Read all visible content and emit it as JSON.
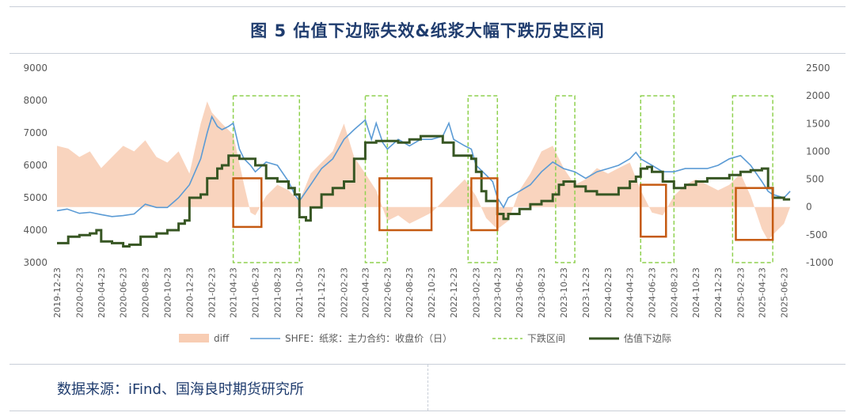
{
  "header": {
    "title": "图 5 估值下边际失效&纸浆大幅下跌历史区间"
  },
  "footer": {
    "source": "数据来源：iFind、国海良时期货研究所"
  },
  "chart_data": {
    "type": "line",
    "title": "图 5 估值下边际失效&纸浆大幅下跌历史区间",
    "left_axis": {
      "min": 3000,
      "max": 9000,
      "ticks": [
        3000,
        4000,
        5000,
        6000,
        7000,
        8000,
        9000
      ]
    },
    "right_axis": {
      "min": -1000,
      "max": 2500,
      "ticks": [
        -1000,
        -500,
        0,
        500,
        1000,
        1500,
        2000,
        2500
      ]
    },
    "x_tick_labels": [
      "2019-12-23",
      "2020-02-23",
      "2020-04-23",
      "2020-06-23",
      "2020-08-23",
      "2020-10-23",
      "2020-12-23",
      "2021-02-23",
      "2021-04-23",
      "2021-06-23",
      "2021-08-23",
      "2021-10-23",
      "2021-12-23",
      "2022-02-23",
      "2022-04-23",
      "2022-06-23",
      "2022-08-23",
      "2022-10-23",
      "2022-12-23",
      "2023-02-23",
      "2023-04-23",
      "2023-06-23",
      "2023-08-23",
      "2023-10-23",
      "2023-12-23",
      "2024-02-23",
      "2024-04-23",
      "2024-06-23",
      "2024-08-23",
      "2024-10-23",
      "2024-12-23",
      "2025-02-23",
      "2025-04-23",
      "2025-06-23"
    ],
    "legend": [
      "diff",
      "SHFE：纸浆：主力合约：收盘价（日）",
      "下跌区间",
      "估值下边际"
    ],
    "legend_position": "bottom",
    "colors": {
      "diff": "#f8cdb3",
      "shfe": "#5b9bd5",
      "range": "#8fd14f",
      "valuation": "#375623",
      "box": "#c55a11"
    },
    "series": [
      {
        "name": "SHFE：纸浆：主力合约：收盘价（日）",
        "axis": "left",
        "points": [
          [
            "2019-12-23",
            4600
          ],
          [
            "2020-01-20",
            4650
          ],
          [
            "2020-02-23",
            4520
          ],
          [
            "2020-03-23",
            4550
          ],
          [
            "2020-04-23",
            4480
          ],
          [
            "2020-05-23",
            4420
          ],
          [
            "2020-06-23",
            4450
          ],
          [
            "2020-07-23",
            4500
          ],
          [
            "2020-08-23",
            4800
          ],
          [
            "2020-09-23",
            4700
          ],
          [
            "2020-10-23",
            4700
          ],
          [
            "2020-11-23",
            5000
          ],
          [
            "2020-12-23",
            5400
          ],
          [
            "2021-01-23",
            6200
          ],
          [
            "2021-02-10",
            7000
          ],
          [
            "2021-02-23",
            7500
          ],
          [
            "2021-03-10",
            7200
          ],
          [
            "2021-03-23",
            7100
          ],
          [
            "2021-04-10",
            7200
          ],
          [
            "2021-04-23",
            7300
          ],
          [
            "2021-05-10",
            6500
          ],
          [
            "2021-05-23",
            6200
          ],
          [
            "2021-06-10",
            6000
          ],
          [
            "2021-06-23",
            5800
          ],
          [
            "2021-07-23",
            6100
          ],
          [
            "2021-08-23",
            6000
          ],
          [
            "2021-09-23",
            5500
          ],
          [
            "2021-10-10",
            5100
          ],
          [
            "2021-10-23",
            4900
          ],
          [
            "2021-11-23",
            5400
          ],
          [
            "2021-12-23",
            5900
          ],
          [
            "2022-01-23",
            6200
          ],
          [
            "2022-02-23",
            6800
          ],
          [
            "2022-03-23",
            7100
          ],
          [
            "2022-04-23",
            7400
          ],
          [
            "2022-05-10",
            6800
          ],
          [
            "2022-05-23",
            7300
          ],
          [
            "2022-06-10",
            6700
          ],
          [
            "2022-06-23",
            6500
          ],
          [
            "2022-07-23",
            6800
          ],
          [
            "2022-08-23",
            6600
          ],
          [
            "2022-09-23",
            6800
          ],
          [
            "2022-10-23",
            6800
          ],
          [
            "2022-11-23",
            6900
          ],
          [
            "2022-12-10",
            7300
          ],
          [
            "2022-12-23",
            6800
          ],
          [
            "2023-01-23",
            6600
          ],
          [
            "2023-02-10",
            6500
          ],
          [
            "2023-02-23",
            6000
          ],
          [
            "2023-03-23",
            5700
          ],
          [
            "2023-04-10",
            5500
          ],
          [
            "2023-04-23",
            5000
          ],
          [
            "2023-05-10",
            4700
          ],
          [
            "2023-05-23",
            5000
          ],
          [
            "2023-06-23",
            5200
          ],
          [
            "2023-07-23",
            5400
          ],
          [
            "2023-08-23",
            5800
          ],
          [
            "2023-09-23",
            6100
          ],
          [
            "2023-10-23",
            5900
          ],
          [
            "2023-11-23",
            5800
          ],
          [
            "2023-12-23",
            5600
          ],
          [
            "2024-01-23",
            5800
          ],
          [
            "2024-02-23",
            5900
          ],
          [
            "2024-03-23",
            6000
          ],
          [
            "2024-04-23",
            6200
          ],
          [
            "2024-05-10",
            6400
          ],
          [
            "2024-05-23",
            6200
          ],
          [
            "2024-06-23",
            6000
          ],
          [
            "2024-07-23",
            5800
          ],
          [
            "2024-08-23",
            5800
          ],
          [
            "2024-09-23",
            5900
          ],
          [
            "2024-10-23",
            5900
          ],
          [
            "2024-11-23",
            5900
          ],
          [
            "2024-12-23",
            6000
          ],
          [
            "2025-01-23",
            6200
          ],
          [
            "2025-02-23",
            6300
          ],
          [
            "2025-03-23",
            6000
          ],
          [
            "2025-04-23",
            5500
          ],
          [
            "2025-05-10",
            5200
          ],
          [
            "2025-05-23",
            5100
          ],
          [
            "2025-06-23",
            5000
          ],
          [
            "2025-07-10",
            5200
          ]
        ]
      },
      {
        "name": "估值下边际",
        "axis": "left",
        "points": [
          [
            "2019-12-23",
            3600
          ],
          [
            "2020-01-23",
            3800
          ],
          [
            "2020-02-23",
            3850
          ],
          [
            "2020-03-23",
            3900
          ],
          [
            "2020-04-10",
            4000
          ],
          [
            "2020-04-23",
            3650
          ],
          [
            "2020-05-23",
            3600
          ],
          [
            "2020-06-23",
            3500
          ],
          [
            "2020-07-10",
            3550
          ],
          [
            "2020-08-10",
            3800
          ],
          [
            "2020-09-23",
            3900
          ],
          [
            "2020-10-23",
            4000
          ],
          [
            "2020-11-23",
            4200
          ],
          [
            "2020-12-10",
            4300
          ],
          [
            "2020-12-23",
            5000
          ],
          [
            "2021-01-23",
            5100
          ],
          [
            "2021-02-10",
            5600
          ],
          [
            "2021-03-10",
            5900
          ],
          [
            "2021-03-23",
            6000
          ],
          [
            "2021-04-10",
            6300
          ],
          [
            "2021-05-10",
            6200
          ],
          [
            "2021-06-23",
            6000
          ],
          [
            "2021-07-23",
            5600
          ],
          [
            "2021-08-23",
            5500
          ],
          [
            "2021-09-23",
            5300
          ],
          [
            "2021-10-10",
            5100
          ],
          [
            "2021-10-23",
            4400
          ],
          [
            "2021-11-10",
            4300
          ],
          [
            "2021-11-23",
            4700
          ],
          [
            "2021-12-23",
            5100
          ],
          [
            "2022-01-23",
            5300
          ],
          [
            "2022-02-23",
            5500
          ],
          [
            "2022-03-23",
            6200
          ],
          [
            "2022-04-23",
            6700
          ],
          [
            "2022-05-23",
            6750
          ],
          [
            "2022-06-23",
            6750
          ],
          [
            "2022-07-23",
            6700
          ],
          [
            "2022-08-23",
            6800
          ],
          [
            "2022-09-23",
            6900
          ],
          [
            "2022-10-23",
            6900
          ],
          [
            "2022-11-23",
            6700
          ],
          [
            "2022-12-23",
            6300
          ],
          [
            "2023-01-23",
            6300
          ],
          [
            "2023-02-10",
            6200
          ],
          [
            "2023-02-23",
            5800
          ],
          [
            "2023-03-10",
            5200
          ],
          [
            "2023-03-23",
            4900
          ],
          [
            "2023-04-23",
            4500
          ],
          [
            "2023-05-10",
            4350
          ],
          [
            "2023-05-23",
            4500
          ],
          [
            "2023-06-23",
            4650
          ],
          [
            "2023-07-23",
            4800
          ],
          [
            "2023-08-23",
            4900
          ],
          [
            "2023-09-23",
            5100
          ],
          [
            "2023-10-10",
            5400
          ],
          [
            "2023-10-23",
            5500
          ],
          [
            "2023-11-23",
            5350
          ],
          [
            "2023-12-23",
            5200
          ],
          [
            "2024-01-23",
            5100
          ],
          [
            "2024-02-23",
            5100
          ],
          [
            "2024-03-23",
            5300
          ],
          [
            "2024-04-23",
            5500
          ],
          [
            "2024-05-10",
            5650
          ],
          [
            "2024-05-23",
            5900
          ],
          [
            "2024-06-10",
            5950
          ],
          [
            "2024-06-23",
            5800
          ],
          [
            "2024-07-23",
            5500
          ],
          [
            "2024-08-23",
            5300
          ],
          [
            "2024-09-23",
            5400
          ],
          [
            "2024-10-23",
            5500
          ],
          [
            "2024-11-23",
            5600
          ],
          [
            "2024-12-23",
            5600
          ],
          [
            "2025-01-23",
            5700
          ],
          [
            "2025-02-23",
            5800
          ],
          [
            "2025-03-23",
            5850
          ],
          [
            "2025-04-23",
            5900
          ],
          [
            "2025-05-10",
            5300
          ],
          [
            "2025-05-23",
            5000
          ],
          [
            "2025-06-23",
            4950
          ],
          [
            "2025-07-10",
            4950
          ]
        ]
      },
      {
        "name": "diff",
        "axis": "right",
        "points": [
          [
            "2019-12-23",
            1100
          ],
          [
            "2020-01-23",
            1050
          ],
          [
            "2020-02-23",
            900
          ],
          [
            "2020-03-23",
            1000
          ],
          [
            "2020-04-23",
            700
          ],
          [
            "2020-05-23",
            900
          ],
          [
            "2020-06-23",
            1100
          ],
          [
            "2020-07-23",
            1000
          ],
          [
            "2020-08-23",
            1200
          ],
          [
            "2020-09-23",
            900
          ],
          [
            "2020-10-23",
            800
          ],
          [
            "2020-11-23",
            1000
          ],
          [
            "2020-12-23",
            600
          ],
          [
            "2021-01-23",
            1500
          ],
          [
            "2021-02-10",
            1900
          ],
          [
            "2021-02-23",
            1700
          ],
          [
            "2021-03-23",
            1500
          ],
          [
            "2021-04-23",
            1300
          ],
          [
            "2021-05-23",
            400
          ],
          [
            "2021-06-10",
            -100
          ],
          [
            "2021-06-23",
            -150
          ],
          [
            "2021-07-23",
            200
          ],
          [
            "2021-08-23",
            400
          ],
          [
            "2021-09-23",
            300
          ],
          [
            "2021-10-23",
            100
          ],
          [
            "2021-11-23",
            600
          ],
          [
            "2021-12-23",
            800
          ],
          [
            "2022-01-23",
            1000
          ],
          [
            "2022-02-23",
            1500
          ],
          [
            "2022-03-23",
            900
          ],
          [
            "2022-04-23",
            600
          ],
          [
            "2022-05-23",
            300
          ],
          [
            "2022-06-23",
            -250
          ],
          [
            "2022-07-23",
            -150
          ],
          [
            "2022-08-23",
            -300
          ],
          [
            "2022-09-23",
            -200
          ],
          [
            "2022-10-23",
            -100
          ],
          [
            "2022-11-23",
            100
          ],
          [
            "2022-12-23",
            300
          ],
          [
            "2023-01-23",
            500
          ],
          [
            "2023-02-23",
            200
          ],
          [
            "2023-03-23",
            -200
          ],
          [
            "2023-04-23",
            -400
          ],
          [
            "2023-05-23",
            -250
          ],
          [
            "2023-06-23",
            300
          ],
          [
            "2023-07-23",
            600
          ],
          [
            "2023-08-23",
            1000
          ],
          [
            "2023-09-23",
            1100
          ],
          [
            "2023-10-23",
            700
          ],
          [
            "2023-11-23",
            400
          ],
          [
            "2023-12-23",
            500
          ],
          [
            "2024-01-23",
            700
          ],
          [
            "2024-02-23",
            600
          ],
          [
            "2024-03-23",
            700
          ],
          [
            "2024-04-23",
            800
          ],
          [
            "2024-05-23",
            300
          ],
          [
            "2024-06-23",
            -100
          ],
          [
            "2024-07-23",
            -150
          ],
          [
            "2024-08-23",
            200
          ],
          [
            "2024-09-23",
            400
          ],
          [
            "2024-10-23",
            500
          ],
          [
            "2024-11-23",
            400
          ],
          [
            "2024-12-23",
            300
          ],
          [
            "2025-01-23",
            400
          ],
          [
            "2025-02-23",
            600
          ],
          [
            "2025-03-23",
            200
          ],
          [
            "2025-04-23",
            -400
          ],
          [
            "2025-05-10",
            -600
          ],
          [
            "2025-05-23",
            -500
          ],
          [
            "2025-06-23",
            -300
          ],
          [
            "2025-07-10",
            0
          ]
        ]
      }
    ],
    "decline_ranges": [
      [
        "2021-04-23",
        "2021-10-23"
      ],
      [
        "2022-04-23",
        "2022-06-23"
      ],
      [
        "2023-02-01",
        "2023-04-23"
      ],
      [
        "2023-10-01",
        "2023-11-23"
      ],
      [
        "2024-05-23",
        "2024-08-23"
      ],
      [
        "2025-02-01",
        "2025-05-23"
      ]
    ],
    "highlight_boxes": [
      {
        "x": [
          "2021-04-23",
          "2021-07-10"
        ],
        "y": [
          4100,
          5600
        ]
      },
      {
        "x": [
          "2022-06-01",
          "2022-10-23"
        ],
        "y": [
          4000,
          5600
        ]
      },
      {
        "x": [
          "2023-02-10",
          "2023-04-23"
        ],
        "y": [
          4000,
          5600
        ]
      },
      {
        "x": [
          "2024-05-23",
          "2024-08-01"
        ],
        "y": [
          3800,
          5400
        ]
      },
      {
        "x": [
          "2025-02-10",
          "2025-05-23"
        ],
        "y": [
          3700,
          5300
        ]
      }
    ]
  }
}
